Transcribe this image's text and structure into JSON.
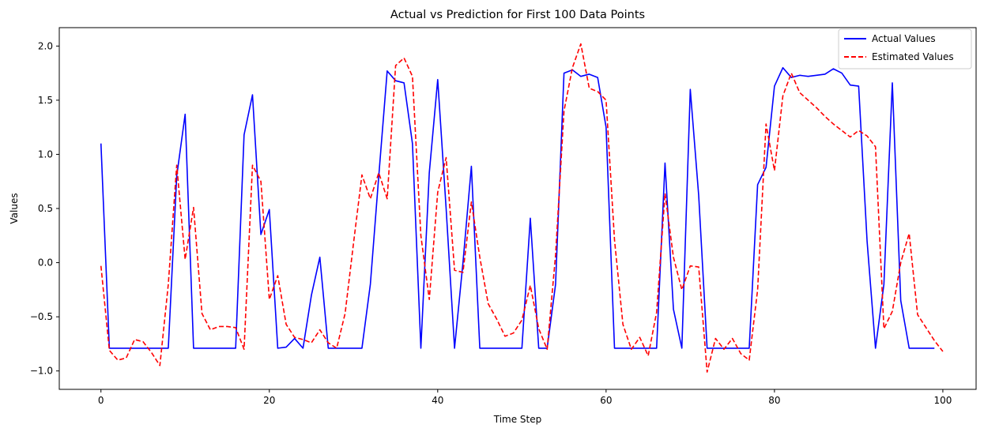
{
  "chart_data": {
    "type": "line",
    "title": "Actual vs Prediction for First 100 Data Points",
    "xlabel": "Time Step",
    "ylabel": "Values",
    "xlim": [
      -4.95,
      103.95
    ],
    "ylim": [
      -1.17,
      2.17
    ],
    "x_ticks": [
      0,
      20,
      40,
      60,
      80,
      100
    ],
    "y_ticks": [
      -1.0,
      -0.5,
      0.0,
      0.5,
      1.0,
      1.5,
      2.0
    ],
    "x_tick_labels": [
      "0",
      "20",
      "40",
      "60",
      "80",
      "100"
    ],
    "y_tick_labels": [
      "−1.0",
      "−0.5",
      "0.0",
      "0.5",
      "1.0",
      "1.5",
      "2.0"
    ],
    "grid": false,
    "legend_position": "top-right",
    "series": [
      {
        "name": "Actual Values",
        "color": "#0000ff",
        "style": "solid",
        "values": [
          1.1,
          -0.79,
          -0.79,
          -0.79,
          -0.79,
          -0.79,
          -0.79,
          -0.79,
          -0.79,
          0.8,
          1.37,
          -0.79,
          -0.79,
          -0.79,
          -0.79,
          -0.79,
          -0.79,
          1.18,
          1.55,
          0.26,
          0.49,
          -0.79,
          -0.78,
          -0.7,
          -0.79,
          -0.3,
          0.05,
          -0.79,
          -0.79,
          -0.79,
          -0.79,
          -0.79,
          -0.2,
          0.8,
          1.77,
          1.68,
          1.66,
          1.1,
          -0.79,
          0.83,
          1.69,
          0.5,
          -0.79,
          0.0,
          0.89,
          -0.79,
          -0.79,
          -0.79,
          -0.79,
          -0.79,
          -0.79,
          0.41,
          -0.79,
          -0.79,
          -0.2,
          1.75,
          1.78,
          1.72,
          1.74,
          1.71,
          1.25,
          -0.79,
          -0.79,
          -0.79,
          -0.79,
          -0.79,
          -0.79,
          0.92,
          -0.43,
          -0.79,
          1.6,
          0.62,
          -0.79,
          -0.79,
          -0.79,
          -0.79,
          -0.79,
          -0.79,
          0.72,
          0.88,
          1.63,
          1.8,
          1.71,
          1.73,
          1.72,
          1.73,
          1.74,
          1.79,
          1.75,
          1.64,
          1.63,
          0.2,
          -0.79,
          -0.2,
          1.66,
          -0.35,
          -0.79,
          -0.79,
          -0.79,
          -0.79
        ]
      },
      {
        "name": "Estimated Values",
        "color": "#ff0000",
        "style": "dashed",
        "values": [
          -0.03,
          -0.81,
          -0.9,
          -0.88,
          -0.71,
          -0.73,
          -0.83,
          -0.95,
          -0.2,
          0.9,
          0.03,
          0.51,
          -0.47,
          -0.62,
          -0.59,
          -0.59,
          -0.6,
          -0.8,
          0.9,
          0.75,
          -0.34,
          -0.12,
          -0.57,
          -0.69,
          -0.71,
          -0.74,
          -0.62,
          -0.74,
          -0.79,
          -0.47,
          0.18,
          0.81,
          0.59,
          0.83,
          0.59,
          1.82,
          1.89,
          1.72,
          0.25,
          -0.34,
          0.65,
          0.97,
          -0.07,
          -0.09,
          0.56,
          0.05,
          -0.38,
          -0.52,
          -0.68,
          -0.65,
          -0.53,
          -0.21,
          -0.61,
          -0.8,
          0.07,
          1.4,
          1.8,
          2.02,
          1.61,
          1.58,
          1.5,
          0.21,
          -0.57,
          -0.8,
          -0.69,
          -0.86,
          -0.46,
          0.64,
          0.05,
          -0.25,
          -0.03,
          -0.04,
          -1.01,
          -0.7,
          -0.8,
          -0.7,
          -0.84,
          -0.9,
          -0.25,
          1.28,
          0.85,
          1.54,
          1.75,
          1.57,
          1.5,
          1.43,
          1.35,
          1.28,
          1.22,
          1.16,
          1.22,
          1.17,
          1.07,
          -0.61,
          -0.45,
          0.0,
          0.27,
          -0.48,
          -0.6,
          -0.72,
          -0.82
        ]
      }
    ]
  }
}
